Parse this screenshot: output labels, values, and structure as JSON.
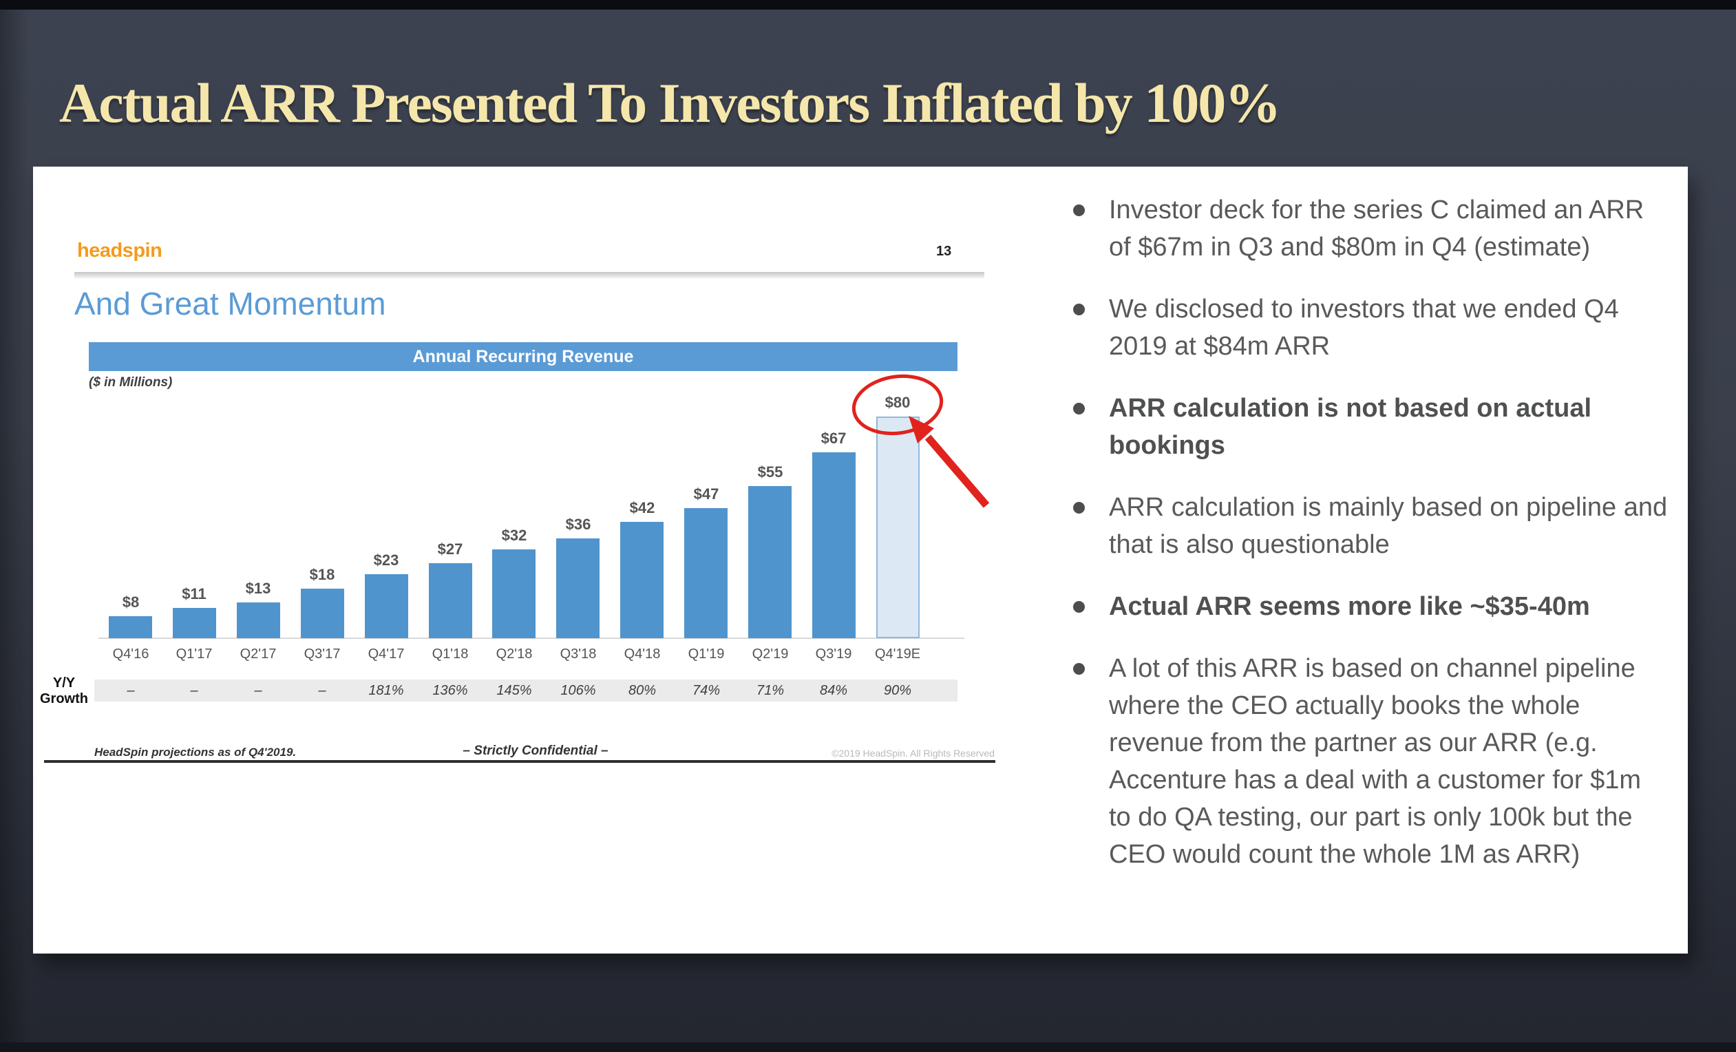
{
  "title": "Actual ARR Presented To Investors Inflated by 100%",
  "slide": {
    "logo": "headspin",
    "page_number": "13",
    "heading": "And Great Momentum",
    "banner_title": "Annual Recurring Revenue",
    "units_note": "($ in Millions)",
    "growth_label_line1": "Y/Y",
    "growth_label_line2": "Growth",
    "footer_left": "HeadSpin projections as of Q4'2019.",
    "footer_center": "– Strictly Confidential –",
    "footer_right": "©2019 HeadSpin. All Rights Reserved"
  },
  "chart_data": {
    "type": "bar",
    "title": "Annual Recurring Revenue",
    "subtitle": "($ in Millions)",
    "categories": [
      "Q4'16",
      "Q1'17",
      "Q2'17",
      "Q3'17",
      "Q4'17",
      "Q1'18",
      "Q2'18",
      "Q3'18",
      "Q4'18",
      "Q1'19",
      "Q2'19",
      "Q3'19",
      "Q4'19E"
    ],
    "values": [
      8,
      11,
      13,
      18,
      23,
      27,
      32,
      36,
      42,
      47,
      55,
      67,
      80
    ],
    "value_labels": [
      "$8",
      "$11",
      "$13",
      "$18",
      "$23",
      "$27",
      "$32",
      "$36",
      "$42",
      "$47",
      "$55",
      "$67",
      "$80"
    ],
    "yoy_growth": [
      "–",
      "–",
      "–",
      "–",
      "181%",
      "136%",
      "145%",
      "106%",
      "80%",
      "74%",
      "71%",
      "84%",
      "90%"
    ],
    "highlight_index": 12,
    "ylim": [
      0,
      85
    ],
    "grid": "off",
    "legend": "none",
    "bar_color": "#5094cd",
    "highlight_fill": "#dce9f5",
    "highlight_border": "#8fb8dd",
    "annotation_color": "#e0231c",
    "annotation": "red ellipse around $80 label with red arrow pointing to Q4'19E bar"
  },
  "bullets": {
    "items": [
      {
        "text": "Investor deck for the series C claimed an ARR of $67m in Q3 and $80m in Q4 (estimate)",
        "bold": false
      },
      {
        "text": "We disclosed to investors that we ended Q4 2019 at $84m ARR",
        "bold": false
      },
      {
        "text": "ARR calculation is not based on actual bookings",
        "bold": true
      },
      {
        "text": "ARR calculation is mainly based on pipeline and that is also questionable",
        "bold": false
      },
      {
        "text": "Actual ARR seems more like ~$35-40m",
        "bold": true
      },
      {
        "text": "A lot of this ARR is based on channel pipeline where the CEO actually books the whole revenue from the partner as our ARR (e.g. Accenture has a deal with a customer for $1m to do QA testing, our part is only 100k but the CEO would count the whole 1M as ARR)",
        "bold": false
      }
    ]
  }
}
